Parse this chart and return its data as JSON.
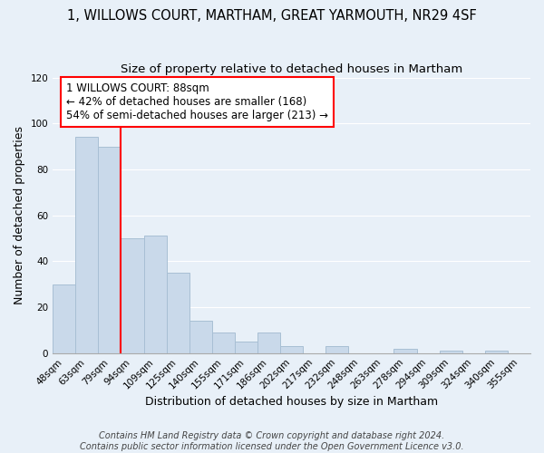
{
  "title": "1, WILLOWS COURT, MARTHAM, GREAT YARMOUTH, NR29 4SF",
  "subtitle": "Size of property relative to detached houses in Martham",
  "xlabel": "Distribution of detached houses by size in Martham",
  "ylabel": "Number of detached properties",
  "bar_labels": [
    "48sqm",
    "63sqm",
    "79sqm",
    "94sqm",
    "109sqm",
    "125sqm",
    "140sqm",
    "155sqm",
    "171sqm",
    "186sqm",
    "202sqm",
    "217sqm",
    "232sqm",
    "248sqm",
    "263sqm",
    "278sqm",
    "294sqm",
    "309sqm",
    "324sqm",
    "340sqm",
    "355sqm"
  ],
  "bar_values": [
    30,
    94,
    90,
    50,
    51,
    35,
    14,
    9,
    5,
    9,
    3,
    0,
    3,
    0,
    0,
    2,
    0,
    1,
    0,
    1,
    0
  ],
  "bar_color": "#c9d9ea",
  "bar_edge_color": "#a8bfd4",
  "reference_line_label": "1 WILLOWS COURT: 88sqm",
  "annotation_line1": "← 42% of detached houses are smaller (168)",
  "annotation_line2": "54% of semi-detached houses are larger (213) →",
  "annotation_box_color": "white",
  "annotation_box_edgecolor": "red",
  "vline_color": "red",
  "vline_x": 2.5,
  "ylim": [
    0,
    120
  ],
  "yticks": [
    0,
    20,
    40,
    60,
    80,
    100,
    120
  ],
  "bg_color": "#e8f0f8",
  "footer1": "Contains HM Land Registry data © Crown copyright and database right 2024.",
  "footer2": "Contains public sector information licensed under the Open Government Licence v3.0.",
  "title_fontsize": 10.5,
  "subtitle_fontsize": 9.5,
  "axis_label_fontsize": 9,
  "tick_fontsize": 7.5,
  "annotation_fontsize": 8.5,
  "footer_fontsize": 7
}
